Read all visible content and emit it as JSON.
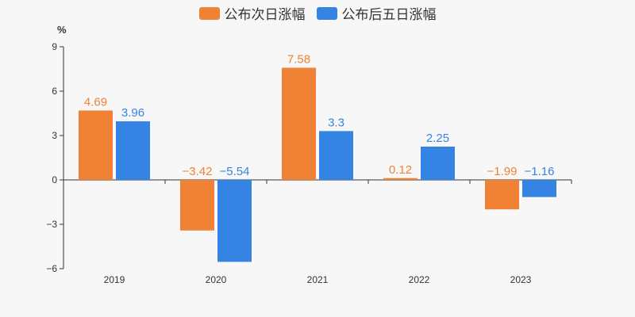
{
  "chart_data": {
    "type": "bar",
    "unit_label": "%",
    "categories": [
      "2019",
      "2020",
      "2021",
      "2022",
      "2023"
    ],
    "series": [
      {
        "name": "公布次日涨幅",
        "color": "#f08235",
        "values": [
          4.69,
          -3.42,
          7.58,
          0.12,
          -1.99
        ],
        "labels": [
          "4.69",
          "−3.42",
          "7.58",
          "0.12",
          "−1.99"
        ]
      },
      {
        "name": "公布后五日涨幅",
        "color": "#3584e4",
        "values": [
          3.96,
          -5.54,
          3.3,
          2.25,
          -1.16
        ],
        "labels": [
          "3.96",
          "−5.54",
          "3.3",
          "2.25",
          "−1.16"
        ]
      }
    ],
    "yticks": [
      9,
      6,
      3,
      0,
      -3,
      -6
    ],
    "ytick_labels": [
      "9",
      "6",
      "3",
      "0",
      "−3",
      "−6"
    ],
    "ylim": [
      -6,
      9
    ],
    "legend_position": "top-center",
    "grid": false
  }
}
